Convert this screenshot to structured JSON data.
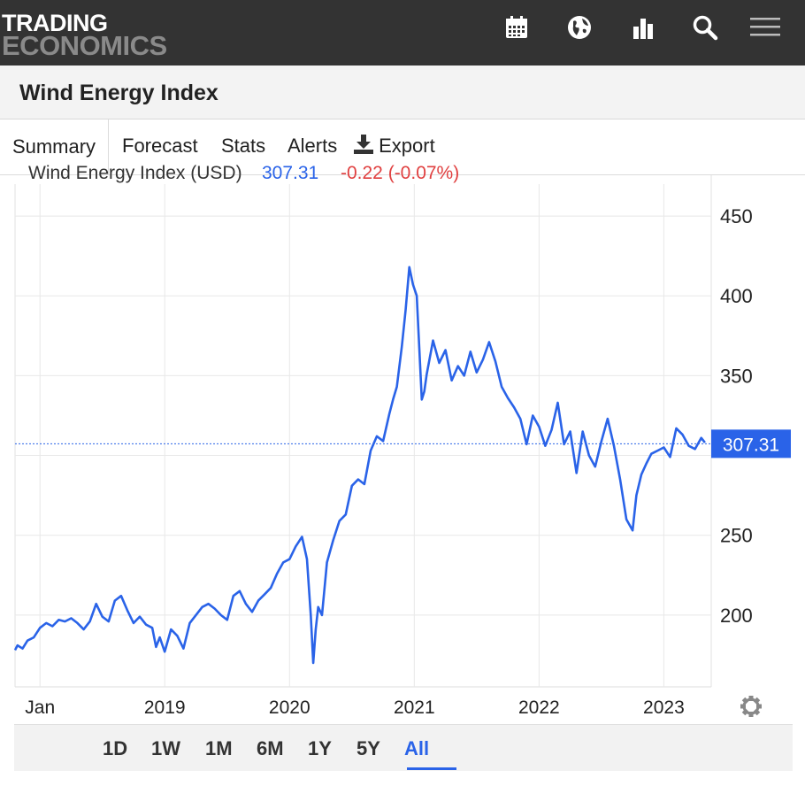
{
  "brand": {
    "line1": "TRADING",
    "line2": "ECONOMICS"
  },
  "header": {
    "icons": [
      "calendar-icon",
      "globe-icon",
      "bar-chart-icon",
      "search-icon",
      "menu-icon"
    ]
  },
  "page": {
    "title": "Wind Energy Index"
  },
  "tabs": [
    {
      "label": "Summary",
      "active": true
    },
    {
      "label": "Forecast"
    },
    {
      "label": "Stats"
    },
    {
      "label": "Alerts"
    },
    {
      "label": "Export",
      "icon": "download-icon"
    }
  ],
  "chart_header": {
    "name": "Wind Energy Index (USD)",
    "price": "307.31",
    "change": "-0.22 (-0.07%)"
  },
  "chart_data": {
    "type": "line",
    "title": "",
    "x": [
      2017.8,
      2017.82,
      2017.86,
      2017.9,
      2017.95,
      2018.0,
      2018.05,
      2018.1,
      2018.15,
      2018.2,
      2018.25,
      2018.3,
      2018.35,
      2018.4,
      2018.45,
      2018.5,
      2018.55,
      2018.6,
      2018.65,
      2018.7,
      2018.75,
      2018.8,
      2018.85,
      2018.9,
      2018.93,
      2018.96,
      2019.0,
      2019.05,
      2019.1,
      2019.15,
      2019.2,
      2019.25,
      2019.3,
      2019.35,
      2019.4,
      2019.45,
      2019.5,
      2019.55,
      2019.6,
      2019.65,
      2019.7,
      2019.75,
      2019.8,
      2019.85,
      2019.9,
      2019.95,
      2020.0,
      2020.05,
      2020.1,
      2020.14,
      2020.17,
      2020.19,
      2020.21,
      2020.23,
      2020.26,
      2020.3,
      2020.35,
      2020.4,
      2020.45,
      2020.5,
      2020.55,
      2020.6,
      2020.65,
      2020.7,
      2020.75,
      2020.8,
      2020.83,
      2020.86,
      2020.9,
      2020.93,
      2020.96,
      2020.99,
      2021.02,
      2021.04,
      2021.06,
      2021.08,
      2021.1,
      2021.15,
      2021.2,
      2021.25,
      2021.3,
      2021.35,
      2021.4,
      2021.45,
      2021.5,
      2021.55,
      2021.6,
      2021.65,
      2021.7,
      2021.75,
      2021.8,
      2021.85,
      2021.9,
      2021.95,
      2022.0,
      2022.05,
      2022.1,
      2022.15,
      2022.2,
      2022.25,
      2022.3,
      2022.35,
      2022.4,
      2022.45,
      2022.5,
      2022.55,
      2022.6,
      2022.65,
      2022.7,
      2022.75,
      2022.78,
      2022.82,
      2022.86,
      2022.9,
      2022.95,
      2023.0,
      2023.05,
      2023.1,
      2023.15,
      2023.2,
      2023.25,
      2023.3,
      2023.33
    ],
    "y": [
      178,
      181,
      179,
      184,
      186,
      192,
      195,
      193,
      197,
      196,
      198,
      195,
      191,
      196,
      207,
      199,
      196,
      209,
      212,
      203,
      195,
      199,
      194,
      192,
      180,
      186,
      177,
      191,
      187,
      179,
      195,
      200,
      205,
      207,
      204,
      200,
      197,
      212,
      215,
      207,
      202,
      209,
      213,
      217,
      226,
      233,
      235,
      243,
      249,
      235,
      200,
      170,
      191,
      205,
      200,
      233,
      247,
      259,
      263,
      281,
      285,
      282,
      303,
      312,
      309,
      326,
      335,
      343,
      368,
      391,
      418,
      407,
      400,
      367,
      335,
      340,
      351,
      372,
      358,
      366,
      347,
      356,
      350,
      365,
      352,
      360,
      371,
      359,
      343,
      336,
      330,
      323,
      307,
      325,
      318,
      306,
      316,
      333,
      307,
      315,
      289,
      315,
      300,
      293,
      309,
      323,
      306,
      285,
      260,
      253,
      275,
      288,
      295,
      301,
      303,
      305,
      299,
      317,
      313,
      306,
      304,
      311,
      308
    ],
    "ylim": [
      155,
      470
    ],
    "yticks": [
      200,
      250,
      300,
      350,
      400,
      450
    ],
    "ytick_labels": [
      "200",
      "250",
      "",
      "350",
      "400",
      "450"
    ],
    "xticks": [
      2018.0,
      2019.0,
      2020.0,
      2021.0,
      2022.0,
      2023.0
    ],
    "xtick_labels": [
      "Jan",
      "2019",
      "2020",
      "2021",
      "2022",
      "2023"
    ],
    "xlim": [
      2017.8,
      2023.38
    ],
    "last_value": 307.31,
    "last_label": "307.31",
    "grid": true,
    "line_color": "#2a63e8"
  },
  "ranges": [
    {
      "label": "1D"
    },
    {
      "label": "1W"
    },
    {
      "label": "1M"
    },
    {
      "label": "6M"
    },
    {
      "label": "1Y"
    },
    {
      "label": "5Y"
    },
    {
      "label": "All",
      "active": true
    }
  ],
  "settings": {
    "icon": "gear-icon"
  }
}
